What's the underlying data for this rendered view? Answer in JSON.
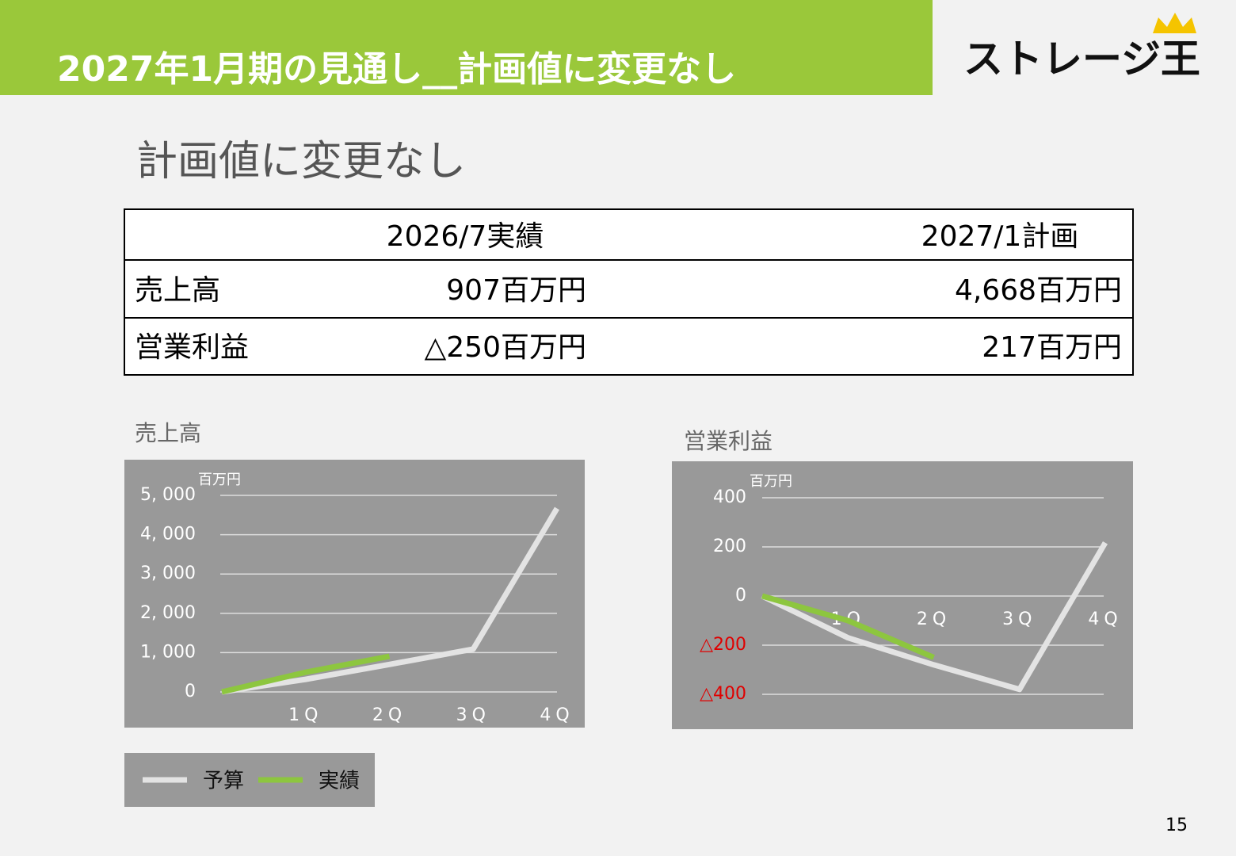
{
  "header": {
    "title": "2027年1月期の見通し__計画値に変更なし",
    "logo": "ストレージ王"
  },
  "subtitle": "計画値に変更なし",
  "table": {
    "columns": [
      "2026/7実績",
      "2027/1計画"
    ],
    "rows": [
      {
        "label": "売上高",
        "values": [
          "907百万円",
          "4,668百万円"
        ]
      },
      {
        "label": "営業利益",
        "values": [
          "△250百万円",
          "217百万円"
        ]
      }
    ]
  },
  "chart_data": [
    {
      "type": "line",
      "title": "売上高",
      "unit": "百万円",
      "categories": [
        null,
        "1Q",
        "2Q",
        "3Q",
        "4Q"
      ],
      "series": [
        {
          "color": "#e3e3e3",
          "values": [
            0,
            320,
            700,
            1090,
            4668
          ]
        },
        {
          "color": "#8dc63f",
          "values": [
            0,
            500,
            907,
            null,
            null
          ]
        }
      ],
      "ylim": [
        0,
        5000
      ],
      "yticks": [
        0,
        {
          "value": 1000,
          "label": "1, 000"
        },
        {
          "value": 2000,
          "label": "2, 000"
        },
        {
          "value": 3000,
          "label": "3, 000"
        },
        {
          "value": 4000,
          "label": "4, 000"
        },
        {
          "value": 5000,
          "label": "5, 000"
        }
      ],
      "grid": true
    },
    {
      "type": "line",
      "title": "営業利益",
      "unit": "百万円",
      "categories": [
        null,
        "1Q",
        "2Q",
        "3Q",
        "4Q"
      ],
      "series": [
        {
          "color": "#e3e3e3",
          "values": [
            0,
            -170,
            -280,
            -380,
            217
          ]
        },
        {
          "color": "#8dc63f",
          "values": [
            0,
            -100,
            -250,
            null,
            null
          ]
        }
      ],
      "ylim": [
        -400,
        400
      ],
      "yticks": [
        {
          "value": -400,
          "label": "△400"
        },
        {
          "value": -200,
          "label": "△200"
        },
        0,
        200,
        400
      ],
      "negative_tick_color": "#e00000",
      "grid": true
    }
  ],
  "legend": [
    "予算",
    "実績"
  ],
  "page_number": "15"
}
